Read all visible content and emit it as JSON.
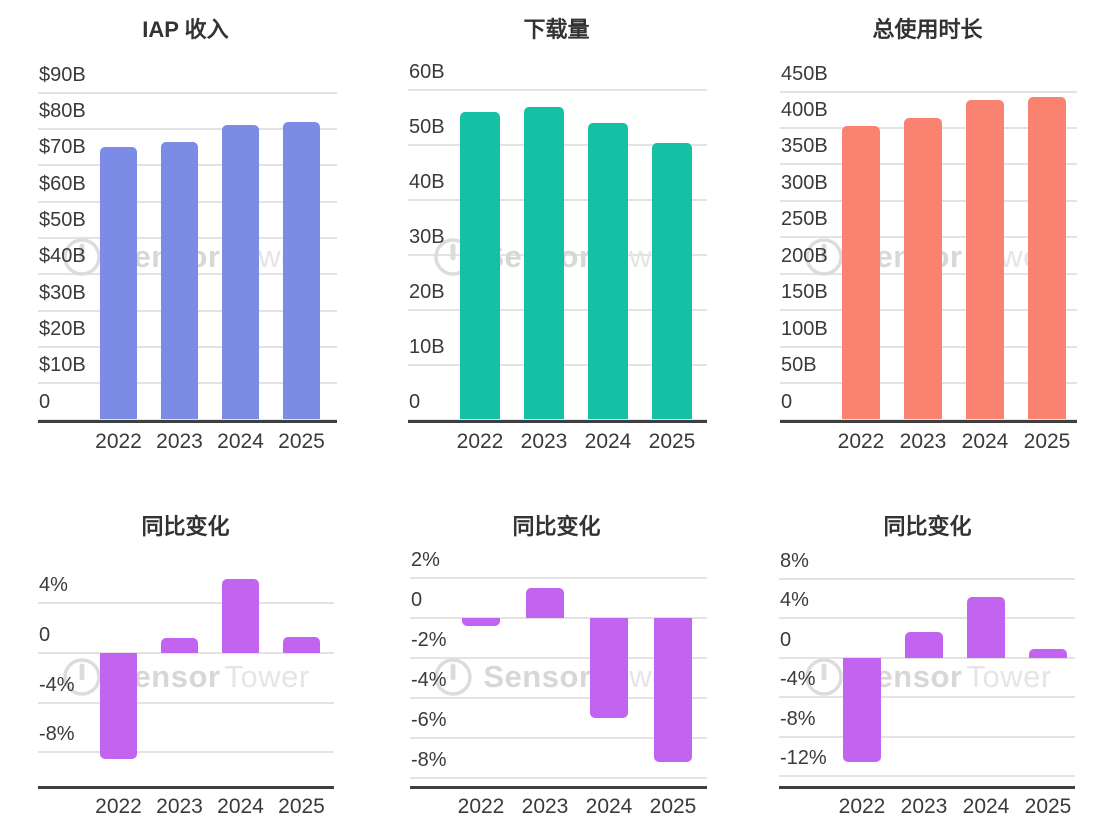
{
  "watermark": {
    "brand_first": "Sensor",
    "brand_second": "Tower",
    "logo": "sensor-tower-logo"
  },
  "colors": {
    "revenue_bar": "#7b8be6",
    "downloads_bar": "#15c1a5",
    "time_spent_bar": "#f98270",
    "yoy_bar": "#c264f0",
    "gridline": "#e3e3e3",
    "axis_line": "#3f3f3f",
    "text": "#3a3a3a"
  },
  "chart_data": [
    {
      "type": "bar",
      "title": "IAP 收入",
      "unit": "$B",
      "categories": [
        "2022",
        "2023",
        "2024",
        "2025"
      ],
      "values": [
        75,
        76.5,
        81,
        82
      ],
      "color": "#7b8be6",
      "ylim": [
        0,
        92.1
      ],
      "ytick_values": [
        0,
        10,
        20,
        30,
        40,
        50,
        60,
        70,
        80,
        90
      ],
      "ytick_labels": [
        "0",
        "$10B",
        "$20B",
        "$30B",
        "$40B",
        "$50B",
        "$60B",
        "$70B",
        "$80B",
        "$90B"
      ],
      "grid": true,
      "legend": false
    },
    {
      "type": "bar",
      "title": "下载量",
      "unit": "B",
      "categories": [
        "2022",
        "2023",
        "2024",
        "2025"
      ],
      "values": [
        56,
        57,
        54,
        50.5
      ],
      "color": "#15c1a5",
      "ylim": [
        0,
        61
      ],
      "ytick_values": [
        0,
        10,
        20,
        30,
        40,
        50,
        60
      ],
      "ytick_labels": [
        "0",
        "10B",
        "20B",
        "30B",
        "40B",
        "50B",
        "60B"
      ],
      "grid": true,
      "legend": false
    },
    {
      "type": "bar",
      "title": "总使用时长",
      "unit": "B",
      "categories": [
        "2022",
        "2023",
        "2024",
        "2025"
      ],
      "values": [
        403,
        414,
        439,
        443
      ],
      "color": "#f98270",
      "ylim": [
        0,
        459
      ],
      "ytick_values": [
        0,
        50,
        100,
        150,
        200,
        250,
        300,
        350,
        400,
        450
      ],
      "ytick_labels": [
        "0",
        "50B",
        "100B",
        "150B",
        "200B",
        "250B",
        "300B",
        "350B",
        "400B",
        "450B"
      ],
      "grid": true,
      "legend": false
    },
    {
      "type": "bar",
      "title": "同比变化",
      "unit": "%",
      "categories": [
        "2022",
        "2023",
        "2024",
        "2025"
      ],
      "values": [
        -8.5,
        1.2,
        6.0,
        1.3
      ],
      "color": "#c264f0",
      "ylim": [
        -10.7,
        7.1
      ],
      "ytick_values": [
        4,
        0,
        -4,
        -8
      ],
      "ytick_labels": [
        "4%",
        "0",
        "-4%",
        "-8%"
      ],
      "grid": true,
      "legend": false
    },
    {
      "type": "bar",
      "title": "同比变化",
      "unit": "%",
      "categories": [
        "2022",
        "2023",
        "2024",
        "2025"
      ],
      "values": [
        -0.4,
        1.5,
        -5.0,
        -7.2
      ],
      "color": "#c264f0",
      "ylim": [
        -8.4,
        2.65
      ],
      "ytick_values": [
        2,
        0,
        -2,
        -4,
        -6,
        -8
      ],
      "ytick_labels": [
        "2%",
        "0",
        "-2%",
        "-4%",
        "-6%",
        "-8%"
      ],
      "grid": true,
      "legend": false
    },
    {
      "type": "bar",
      "title": "同比变化",
      "unit": "%",
      "categories": [
        "2022",
        "2023",
        "2024",
        "2025"
      ],
      "values": [
        -10.6,
        2.6,
        6.2,
        0.9
      ],
      "color": "#c264f0",
      "ylim": [
        -13.0,
        9.4
      ],
      "ytick_values": [
        8,
        4,
        0,
        -4,
        -8,
        -12
      ],
      "ytick_labels": [
        "8%",
        "4%",
        "0",
        "-4%",
        "-8%",
        "-12%"
      ],
      "grid": true,
      "legend": false
    }
  ]
}
